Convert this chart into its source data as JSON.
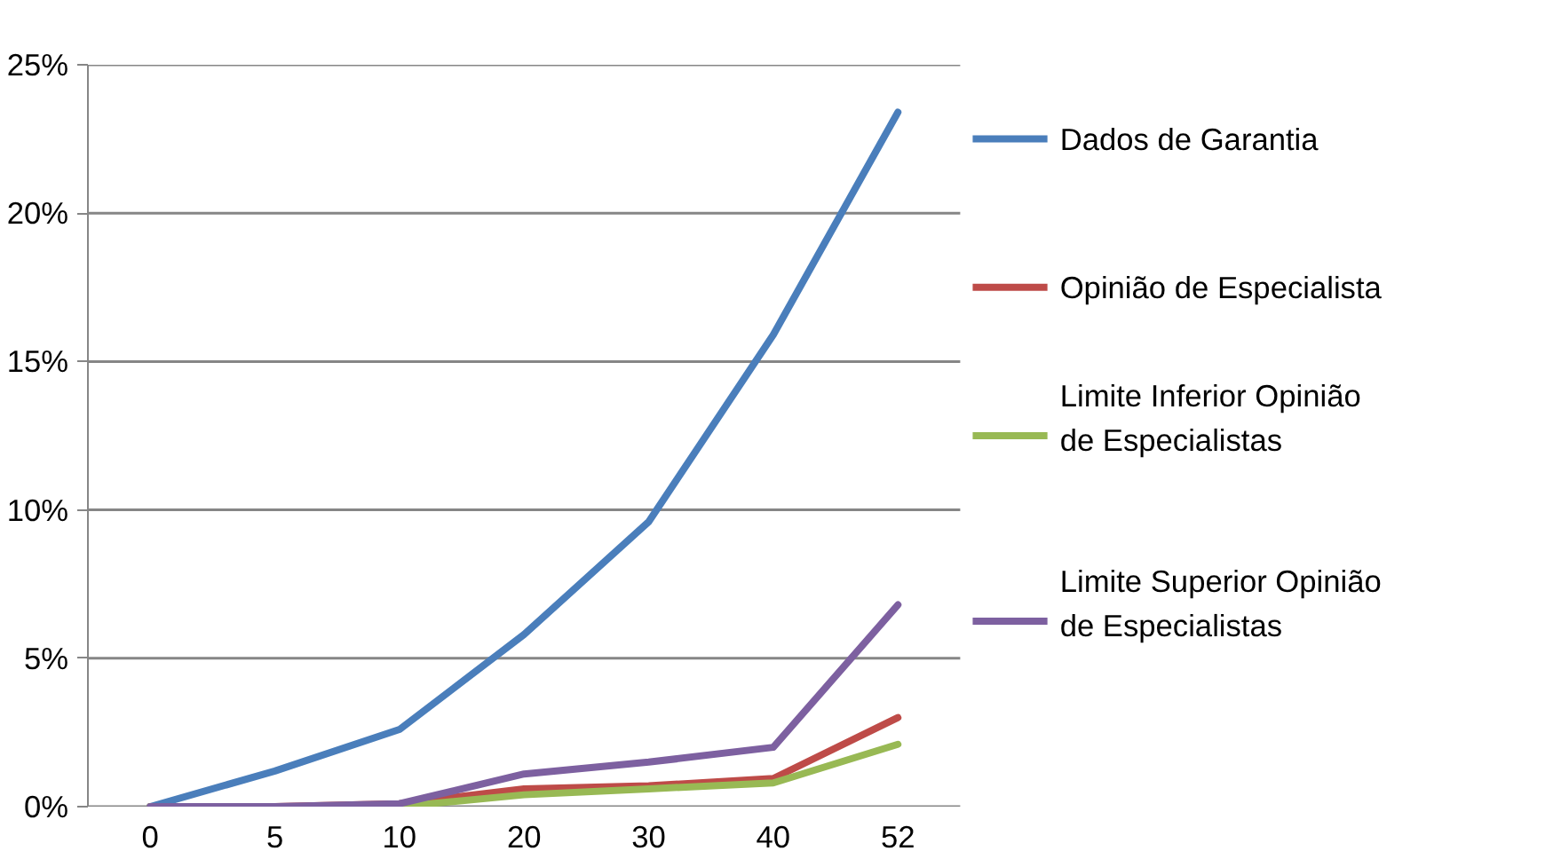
{
  "chart_data": {
    "type": "line",
    "categories": [
      "0",
      "5",
      "10",
      "20",
      "30",
      "40",
      "52"
    ],
    "series": [
      {
        "name": "Dados de Garantia",
        "color": "#4a7ebb",
        "values": [
          0,
          1.2,
          2.6,
          5.8,
          9.6,
          15.9,
          23.4
        ]
      },
      {
        "name": "Opinião de Especialista",
        "color": "#be4b48",
        "values": [
          0,
          0,
          0.1,
          0.6,
          0.7,
          0.95,
          3.0
        ]
      },
      {
        "name": "Limite Inferior Opinião de Especialistas",
        "color": "#98b954",
        "values": [
          0,
          0,
          0,
          0.4,
          0.6,
          0.8,
          2.1
        ]
      },
      {
        "name": "Limite Superior Opinião de Especialistas",
        "color": "#7d60a0",
        "values": [
          0,
          0,
          0.1,
          1.1,
          1.5,
          2.0,
          6.8
        ]
      }
    ],
    "ylim": [
      0,
      25
    ],
    "yticks": [
      {
        "value": 0,
        "label": "0%"
      },
      {
        "value": 5,
        "label": "5%"
      },
      {
        "value": 10,
        "label": "10%"
      },
      {
        "value": 15,
        "label": "15%"
      },
      {
        "value": 20,
        "label": "20%"
      },
      {
        "value": 25,
        "label": "25%"
      }
    ],
    "grid": "y",
    "legend": "right",
    "marker": "none",
    "line_style": "solid"
  }
}
